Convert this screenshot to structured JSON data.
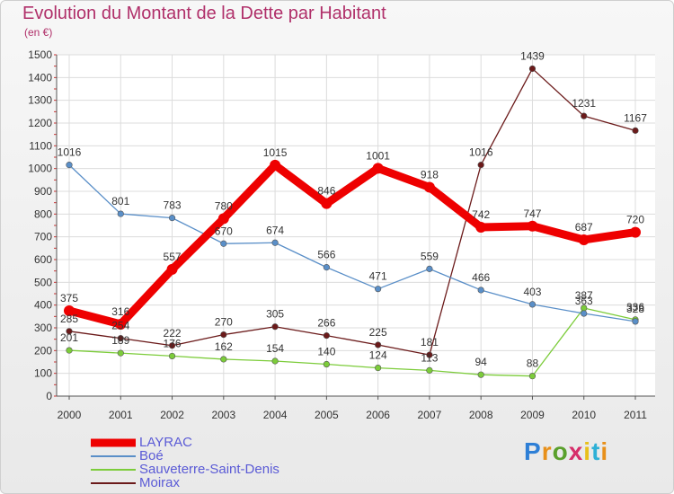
{
  "chart_data": {
    "type": "line",
    "title": "Evolution du Montant de la Dette par Habitant",
    "subtitle": "(en €)",
    "xlabel": "",
    "ylabel": "",
    "ylim": [
      0,
      1500
    ],
    "yticks": [
      "0",
      "100",
      "200",
      "300",
      "400",
      "500",
      "600",
      "700",
      "800",
      "900",
      "1000",
      "1100",
      "1200",
      "1300",
      "1400",
      "1500"
    ],
    "categories": [
      "2000",
      "2001",
      "2002",
      "2003",
      "2004",
      "2005",
      "2006",
      "2007",
      "2008",
      "2009",
      "2010",
      "2011"
    ],
    "grid": true,
    "legend_position": "bottom-left",
    "series": [
      {
        "name": "Moirax",
        "color": "#6b1a1a",
        "values": [
          285,
          254,
          222,
          270,
          305,
          266,
          225,
          181,
          1016,
          1439,
          1231,
          1167
        ]
      },
      {
        "name": "Sauveterre-Saint-Denis",
        "color": "#7ccc3a",
        "values": [
          201,
          189,
          176,
          162,
          154,
          140,
          124,
          113,
          94,
          88,
          387,
          336
        ]
      },
      {
        "name": "Boé",
        "color": "#5a8fc8",
        "values": [
          1016,
          801,
          783,
          670,
          674,
          566,
          471,
          559,
          466,
          403,
          363,
          328
        ]
      },
      {
        "name": "LAYRAC",
        "color": "#ee0000",
        "values": [
          375,
          316,
          557,
          780,
          1015,
          846,
          1001,
          918,
          742,
          747,
          687,
          720
        ]
      }
    ]
  },
  "legend": {
    "items": [
      {
        "name": "LAYRAC",
        "color": "#ee0000"
      },
      {
        "name": "Boé",
        "color": "#5a8fc8"
      },
      {
        "name": "Sauveterre-Saint-Denis",
        "color": "#7ccc3a"
      },
      {
        "name": "Moirax",
        "color": "#6b1a1a"
      }
    ]
  },
  "logo": {
    "letters": [
      "P",
      "r",
      "o",
      "x",
      "i",
      "t",
      "i"
    ],
    "colors": [
      "#2e7fd6",
      "#e8901a",
      "#5aa02c",
      "#d62e6a",
      "#e8c01a",
      "#2eb0d6",
      "#e8901a"
    ]
  }
}
